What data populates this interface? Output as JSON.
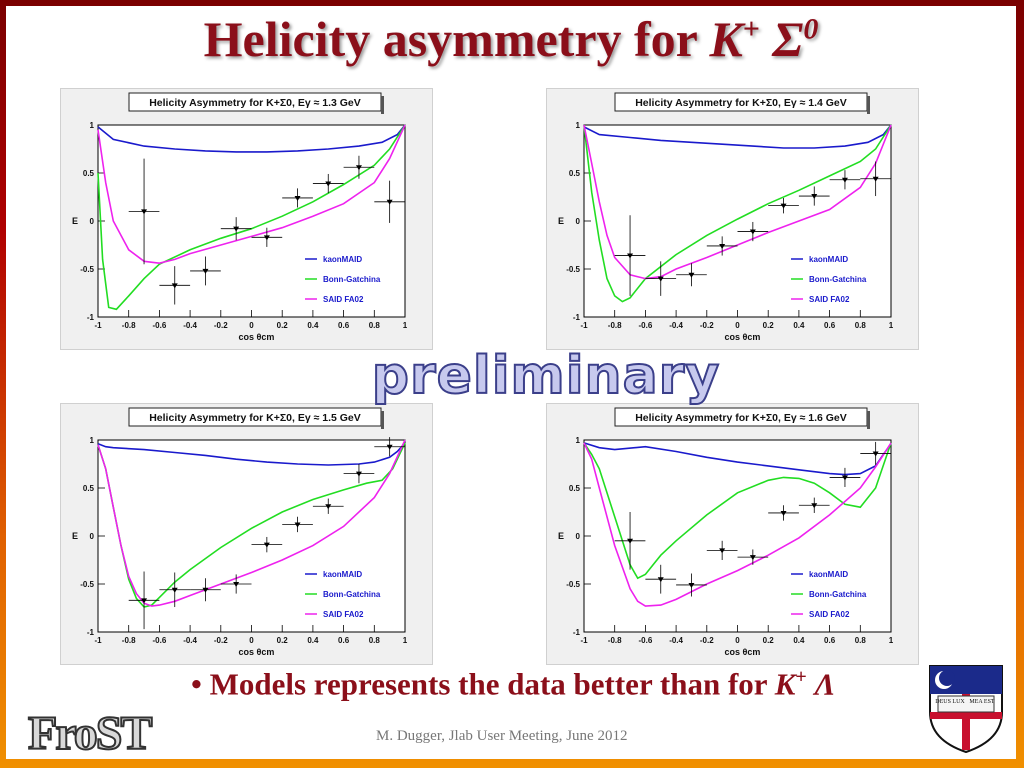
{
  "slide": {
    "title_text": "Helicity asymmetry for ",
    "title_k": "K",
    "title_k_sup": "+",
    "title_sigma": "Σ",
    "title_sigma_sup": "0",
    "watermark": "preliminary",
    "bullet_text": "• Models represents the data better than for ",
    "bullet_k": "K",
    "bullet_k_sup": "+",
    "bullet_lambda": " Λ",
    "footer": "M. Dugger, Jlab User Meeting, June 2012",
    "logo_text": "FroST",
    "crest_text_left": "DEUS LUX",
    "crest_text_right": "MEA EST"
  },
  "colors": {
    "title": "#8b0f1a",
    "kaonMAID": "#1a1acc",
    "Bonn-Gatchina": "#22dd22",
    "SAID FA02": "#ee22ee"
  },
  "chart_data": [
    {
      "type": "line",
      "title": "Helicity Asymmetry for K+Σ0, Eγ ≈ 1.3 GeV",
      "energy": "1.3",
      "xlabel": "cos θcm",
      "ylabel": "E",
      "xlim": [
        -1,
        1
      ],
      "ylim": [
        -1,
        1
      ],
      "xticks": [
        -1,
        -0.8,
        -0.6,
        -0.4,
        -0.2,
        0,
        0.2,
        0.4,
        0.6,
        0.8,
        1
      ],
      "yticks": [
        -1,
        -0.5,
        0,
        0.5,
        1
      ],
      "legend_placement": "lower-right",
      "series": [
        {
          "name": "kaonMAID",
          "x": [
            -1,
            -0.9,
            -0.7,
            -0.5,
            -0.3,
            -0.1,
            0.1,
            0.3,
            0.5,
            0.7,
            0.85,
            0.95,
            1
          ],
          "y": [
            0.98,
            0.85,
            0.78,
            0.75,
            0.73,
            0.72,
            0.72,
            0.73,
            0.75,
            0.78,
            0.82,
            0.9,
            1.0
          ]
        },
        {
          "name": "Bonn-Gatchina",
          "x": [
            -1,
            -0.97,
            -0.93,
            -0.88,
            -0.8,
            -0.7,
            -0.6,
            -0.4,
            -0.2,
            0,
            0.2,
            0.4,
            0.6,
            0.8,
            0.9,
            1
          ],
          "y": [
            0.5,
            -0.4,
            -0.9,
            -0.92,
            -0.78,
            -0.6,
            -0.45,
            -0.3,
            -0.18,
            -0.08,
            0.05,
            0.2,
            0.38,
            0.58,
            0.75,
            1.0
          ]
        },
        {
          "name": "SAID FA02",
          "x": [
            -1,
            -0.95,
            -0.9,
            -0.8,
            -0.7,
            -0.6,
            -0.5,
            -0.4,
            -0.2,
            0,
            0.2,
            0.4,
            0.6,
            0.8,
            0.9,
            1
          ],
          "y": [
            0.95,
            0.4,
            0.0,
            -0.3,
            -0.42,
            -0.44,
            -0.4,
            -0.34,
            -0.25,
            -0.16,
            -0.07,
            0.05,
            0.18,
            0.4,
            0.65,
            1.0
          ]
        }
      ],
      "points": {
        "x": [
          -0.7,
          -0.5,
          -0.3,
          -0.1,
          0.1,
          0.3,
          0.5,
          0.7,
          0.9
        ],
        "y": [
          0.1,
          -0.67,
          -0.52,
          -0.08,
          -0.17,
          0.24,
          0.39,
          0.56,
          0.2
        ],
        "xerr": [
          0.1,
          0.1,
          0.1,
          0.1,
          0.1,
          0.1,
          0.1,
          0.1,
          0.1
        ],
        "yerr": [
          0.55,
          0.2,
          0.15,
          0.12,
          0.1,
          0.1,
          0.1,
          0.12,
          0.22
        ]
      }
    },
    {
      "type": "line",
      "title": "Helicity Asymmetry for K+Σ0, Eγ ≈ 1.4 GeV",
      "energy": "1.4",
      "xlabel": "cos θcm",
      "ylabel": "E",
      "xlim": [
        -1,
        1
      ],
      "ylim": [
        -1,
        1
      ],
      "xticks": [
        -1,
        -0.8,
        -0.6,
        -0.4,
        -0.2,
        0,
        0.2,
        0.4,
        0.6,
        0.8,
        1
      ],
      "yticks": [
        -1,
        -0.5,
        0,
        0.5,
        1
      ],
      "legend_placement": "lower-right",
      "series": [
        {
          "name": "kaonMAID",
          "x": [
            -1,
            -0.9,
            -0.7,
            -0.5,
            -0.3,
            -0.1,
            0.1,
            0.3,
            0.5,
            0.7,
            0.85,
            0.95,
            1
          ],
          "y": [
            0.98,
            0.9,
            0.87,
            0.84,
            0.82,
            0.8,
            0.78,
            0.76,
            0.76,
            0.78,
            0.82,
            0.9,
            1.0
          ]
        },
        {
          "name": "Bonn-Gatchina",
          "x": [
            -1,
            -0.95,
            -0.9,
            -0.85,
            -0.8,
            -0.75,
            -0.7,
            -0.6,
            -0.4,
            -0.2,
            0,
            0.2,
            0.4,
            0.6,
            0.8,
            0.9,
            1
          ],
          "y": [
            1.0,
            0.3,
            -0.2,
            -0.6,
            -0.78,
            -0.84,
            -0.8,
            -0.6,
            -0.35,
            -0.15,
            0.02,
            0.18,
            0.32,
            0.47,
            0.62,
            0.75,
            1.0
          ]
        },
        {
          "name": "SAID FA02",
          "x": [
            -1,
            -0.95,
            -0.9,
            -0.85,
            -0.8,
            -0.7,
            -0.6,
            -0.5,
            -0.4,
            -0.2,
            0,
            0.2,
            0.4,
            0.6,
            0.8,
            0.9,
            1
          ],
          "y": [
            1.0,
            0.6,
            0.2,
            -0.15,
            -0.38,
            -0.56,
            -0.6,
            -0.58,
            -0.5,
            -0.38,
            -0.25,
            -0.12,
            0.0,
            0.12,
            0.35,
            0.6,
            1.0
          ]
        }
      ],
      "points": {
        "x": [
          -0.7,
          -0.5,
          -0.3,
          -0.1,
          0.1,
          0.3,
          0.5,
          0.7,
          0.9
        ],
        "y": [
          -0.36,
          -0.6,
          -0.56,
          -0.26,
          -0.11,
          0.16,
          0.26,
          0.43,
          0.44
        ],
        "xerr": [
          0.1,
          0.1,
          0.1,
          0.1,
          0.1,
          0.1,
          0.1,
          0.1,
          0.1
        ],
        "yerr": [
          0.42,
          0.18,
          0.12,
          0.1,
          0.1,
          0.08,
          0.1,
          0.1,
          0.18
        ]
      }
    },
    {
      "type": "line",
      "title": "Helicity Asymmetry for K+Σ0, Eγ ≈ 1.5 GeV",
      "energy": "1.5",
      "xlabel": "cos θcm",
      "ylabel": "E",
      "xlim": [
        -1,
        1
      ],
      "ylim": [
        -1,
        1
      ],
      "xticks": [
        -1,
        -0.8,
        -0.6,
        -0.4,
        -0.2,
        0,
        0.2,
        0.4,
        0.6,
        0.8,
        1
      ],
      "yticks": [
        -1,
        -0.5,
        0,
        0.5,
        1
      ],
      "legend_placement": "lower-right",
      "series": [
        {
          "name": "kaonMAID",
          "x": [
            -1,
            -0.95,
            -0.9,
            -0.7,
            -0.5,
            -0.3,
            -0.1,
            0.1,
            0.3,
            0.5,
            0.7,
            0.8,
            0.9,
            0.95,
            1
          ],
          "y": [
            0.96,
            0.93,
            0.92,
            0.9,
            0.87,
            0.84,
            0.8,
            0.77,
            0.75,
            0.74,
            0.75,
            0.77,
            0.82,
            0.88,
            0.97
          ]
        },
        {
          "name": "Bonn-Gatchina",
          "x": [
            -1,
            -0.95,
            -0.9,
            -0.85,
            -0.8,
            -0.75,
            -0.7,
            -0.65,
            -0.6,
            -0.5,
            -0.4,
            -0.2,
            0,
            0.2,
            0.4,
            0.6,
            0.75,
            0.85,
            0.92,
            1
          ],
          "y": [
            0.95,
            0.7,
            0.3,
            -0.1,
            -0.45,
            -0.65,
            -0.74,
            -0.72,
            -0.64,
            -0.48,
            -0.35,
            -0.12,
            0.08,
            0.25,
            0.38,
            0.48,
            0.55,
            0.58,
            0.7,
            0.97
          ]
        },
        {
          "name": "SAID FA02",
          "x": [
            -1,
            -0.95,
            -0.9,
            -0.85,
            -0.8,
            -0.75,
            -0.7,
            -0.65,
            -0.6,
            -0.5,
            -0.4,
            -0.2,
            0,
            0.2,
            0.4,
            0.6,
            0.8,
            0.9,
            1
          ],
          "y": [
            0.95,
            0.7,
            0.3,
            -0.1,
            -0.42,
            -0.6,
            -0.7,
            -0.73,
            -0.72,
            -0.68,
            -0.62,
            -0.5,
            -0.38,
            -0.25,
            -0.1,
            0.1,
            0.4,
            0.65,
            1.0
          ]
        }
      ],
      "points": {
        "x": [
          -0.7,
          -0.5,
          -0.3,
          -0.1,
          0.1,
          0.3,
          0.5,
          0.7,
          0.9
        ],
        "y": [
          -0.67,
          -0.56,
          -0.56,
          -0.5,
          -0.09,
          0.12,
          0.31,
          0.65,
          0.93
        ],
        "xerr": [
          0.1,
          0.1,
          0.1,
          0.1,
          0.1,
          0.1,
          0.1,
          0.1,
          0.1
        ],
        "yerr": [
          0.3,
          0.18,
          0.12,
          0.1,
          0.08,
          0.08,
          0.08,
          0.1,
          0.1
        ]
      }
    },
    {
      "type": "line",
      "title": "Helicity Asymmetry for K+Σ0, Eγ ≈ 1.6 GeV",
      "energy": "1.6",
      "xlabel": "cos θcm",
      "ylabel": "E",
      "xlim": [
        -1,
        1
      ],
      "ylim": [
        -1,
        1
      ],
      "xticks": [
        -1,
        -0.8,
        -0.6,
        -0.4,
        -0.2,
        0,
        0.2,
        0.4,
        0.6,
        0.8,
        1
      ],
      "yticks": [
        -1,
        -0.5,
        0,
        0.5,
        1
      ],
      "legend_placement": "lower-right",
      "series": [
        {
          "name": "kaonMAID",
          "x": [
            -1,
            -0.9,
            -0.8,
            -0.6,
            -0.4,
            -0.2,
            0,
            0.2,
            0.4,
            0.6,
            0.7,
            0.8,
            0.9,
            0.95,
            1
          ],
          "y": [
            0.97,
            0.92,
            0.9,
            0.93,
            0.88,
            0.82,
            0.77,
            0.73,
            0.69,
            0.65,
            0.64,
            0.65,
            0.73,
            0.85,
            0.96
          ]
        },
        {
          "name": "Bonn-Gatchina",
          "x": [
            -1,
            -0.95,
            -0.9,
            -0.8,
            -0.7,
            -0.65,
            -0.6,
            -0.55,
            -0.5,
            -0.4,
            -0.2,
            0,
            0.2,
            0.3,
            0.4,
            0.5,
            0.6,
            0.7,
            0.8,
            0.9,
            1
          ],
          "y": [
            0.97,
            0.85,
            0.7,
            0.2,
            -0.3,
            -0.44,
            -0.4,
            -0.3,
            -0.2,
            -0.05,
            0.22,
            0.45,
            0.58,
            0.61,
            0.6,
            0.55,
            0.45,
            0.33,
            0.3,
            0.5,
            0.97
          ]
        },
        {
          "name": "SAID FA02",
          "x": [
            -1,
            -0.95,
            -0.9,
            -0.8,
            -0.7,
            -0.65,
            -0.6,
            -0.5,
            -0.4,
            -0.2,
            0,
            0.2,
            0.4,
            0.6,
            0.8,
            0.9,
            1
          ],
          "y": [
            0.97,
            0.8,
            0.5,
            -0.1,
            -0.55,
            -0.68,
            -0.73,
            -0.72,
            -0.66,
            -0.5,
            -0.36,
            -0.2,
            -0.02,
            0.22,
            0.5,
            0.72,
            0.97
          ]
        }
      ],
      "points": {
        "x": [
          -0.7,
          -0.5,
          -0.3,
          -0.1,
          0.1,
          0.3,
          0.5,
          0.7,
          0.9
        ],
        "y": [
          -0.05,
          -0.45,
          -0.51,
          -0.15,
          -0.22,
          0.24,
          0.32,
          0.61,
          0.86
        ],
        "xerr": [
          0.1,
          0.1,
          0.1,
          0.1,
          0.1,
          0.1,
          0.1,
          0.1,
          0.1
        ],
        "yerr": [
          0.3,
          0.15,
          0.12,
          0.1,
          0.08,
          0.08,
          0.08,
          0.1,
          0.12
        ]
      }
    }
  ]
}
